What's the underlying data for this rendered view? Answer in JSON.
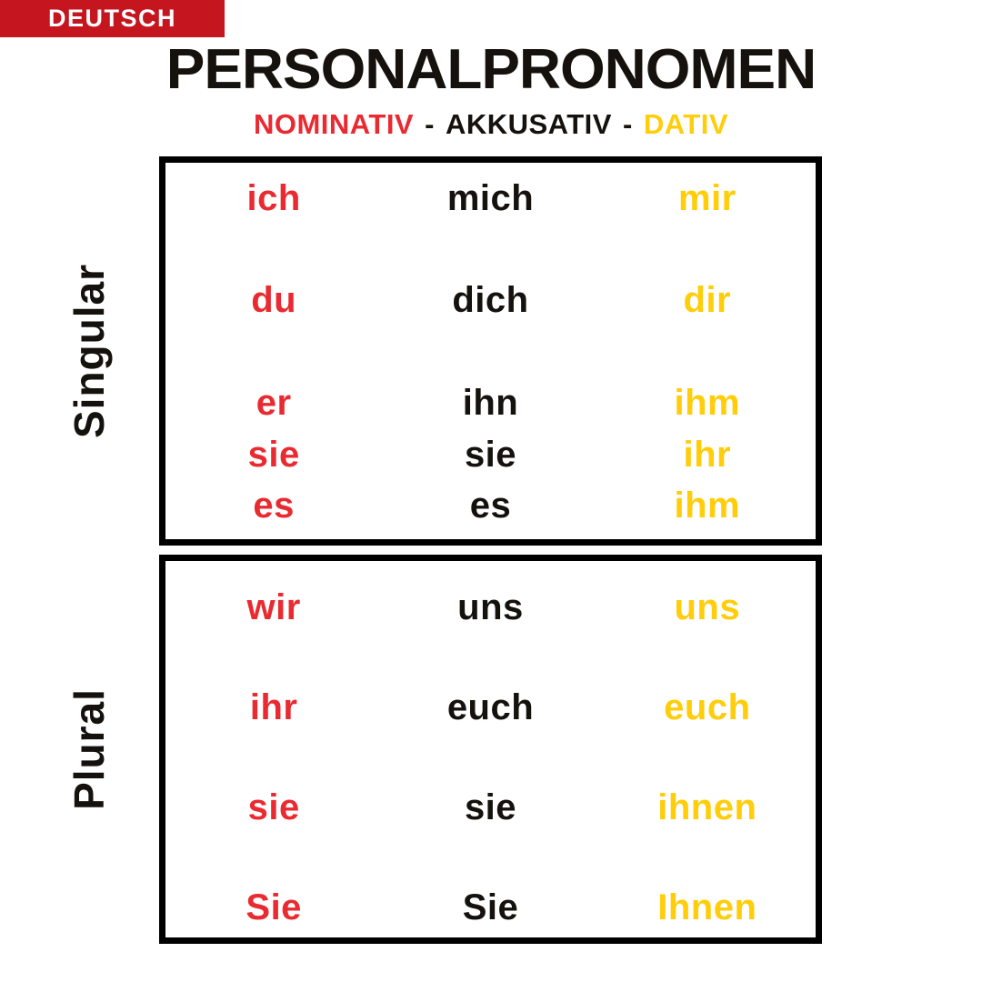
{
  "badge": {
    "label": "DEUTSCH"
  },
  "header": {
    "title": "PERSONALPRONOMEN",
    "subtitle": {
      "nominativ": "NOMINATIV",
      "separator": "-",
      "akkusativ": "AKKUSATIV",
      "dativ": "DATIV"
    }
  },
  "colors": {
    "nominativ_red": "#e92a31",
    "akkusativ_black": "#15110d",
    "dativ_yellow": "#ffcd0a",
    "badge_red": "#c5161f",
    "border_black": "#000000",
    "background": "#ffffff"
  },
  "table": {
    "sections": [
      {
        "label": "Singular",
        "rows": [
          {
            "cells": [
              "ich",
              "mich",
              "mir"
            ]
          },
          {
            "cells": [
              "du",
              "dich",
              "dir"
            ]
          },
          {
            "cells": [
              "er",
              "ihn",
              "ihm"
            ]
          },
          {
            "cells": [
              "sie",
              "sie",
              "ihr"
            ]
          },
          {
            "cells": [
              "es",
              "es",
              "ihm"
            ]
          }
        ]
      },
      {
        "label": "Plural",
        "rows": [
          {
            "cells": [
              "wir",
              "uns",
              "uns"
            ]
          },
          {
            "cells": [
              "ihr",
              "euch",
              "euch"
            ]
          },
          {
            "cells": [
              "sie",
              "sie",
              "ihnen"
            ]
          },
          {
            "cells": [
              "Sie",
              "Sie",
              "Ihnen"
            ]
          }
        ]
      }
    ]
  }
}
